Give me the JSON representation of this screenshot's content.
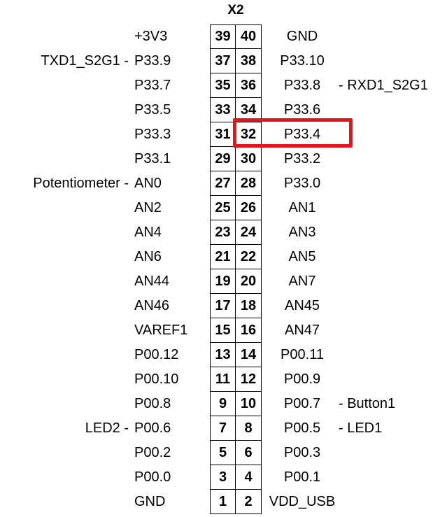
{
  "connector": "X2",
  "rows": [
    {
      "left_ext": "",
      "left_sig": "+3V3",
      "left_pin": "39",
      "right_pin": "40",
      "right_sig": "GND",
      "right_ext": ""
    },
    {
      "left_ext": "TXD1_S2G1 -",
      "left_sig": "P33.9",
      "left_pin": "37",
      "right_pin": "38",
      "right_sig": "P33.10",
      "right_ext": ""
    },
    {
      "left_ext": "",
      "left_sig": "P33.7",
      "left_pin": "35",
      "right_pin": "36",
      "right_sig": "P33.8",
      "right_ext": "- RXD1_S2G1"
    },
    {
      "left_ext": "",
      "left_sig": "P33.5",
      "left_pin": "33",
      "right_pin": "34",
      "right_sig": "P33.6",
      "right_ext": ""
    },
    {
      "left_ext": "",
      "left_sig": "P33.3",
      "left_pin": "31",
      "right_pin": "32",
      "right_sig": "P33.4",
      "right_ext": ""
    },
    {
      "left_ext": "",
      "left_sig": "P33.1",
      "left_pin": "29",
      "right_pin": "30",
      "right_sig": "P33.2",
      "right_ext": ""
    },
    {
      "left_ext": "Potentiometer -",
      "left_sig": "AN0",
      "left_pin": "27",
      "right_pin": "28",
      "right_sig": "P33.0",
      "right_ext": ""
    },
    {
      "left_ext": "",
      "left_sig": "AN2",
      "left_pin": "25",
      "right_pin": "26",
      "right_sig": "AN1",
      "right_ext": ""
    },
    {
      "left_ext": "",
      "left_sig": "AN4",
      "left_pin": "23",
      "right_pin": "24",
      "right_sig": "AN3",
      "right_ext": ""
    },
    {
      "left_ext": "",
      "left_sig": "AN6",
      "left_pin": "21",
      "right_pin": "22",
      "right_sig": "AN5",
      "right_ext": ""
    },
    {
      "left_ext": "",
      "left_sig": "AN44",
      "left_pin": "19",
      "right_pin": "20",
      "right_sig": "AN7",
      "right_ext": ""
    },
    {
      "left_ext": "",
      "left_sig": "AN46",
      "left_pin": "17",
      "right_pin": "18",
      "right_sig": "AN45",
      "right_ext": ""
    },
    {
      "left_ext": "",
      "left_sig": "VAREF1",
      "left_pin": "15",
      "right_pin": "16",
      "right_sig": "AN47",
      "right_ext": ""
    },
    {
      "left_ext": "",
      "left_sig": "P00.12",
      "left_pin": "13",
      "right_pin": "14",
      "right_sig": "P00.11",
      "right_ext": ""
    },
    {
      "left_ext": "",
      "left_sig": "P00.10",
      "left_pin": "11",
      "right_pin": "12",
      "right_sig": "P00.9",
      "right_ext": ""
    },
    {
      "left_ext": "",
      "left_sig": "P00.8",
      "left_pin": "9",
      "right_pin": "10",
      "right_sig": "P00.7",
      "right_ext": "- Button1"
    },
    {
      "left_ext": "LED2 -",
      "left_sig": "P00.6",
      "left_pin": "7",
      "right_pin": "8",
      "right_sig": "P00.5",
      "right_ext": "- LED1"
    },
    {
      "left_ext": "",
      "left_sig": "P00.2",
      "left_pin": "5",
      "right_pin": "6",
      "right_sig": "P00.3",
      "right_ext": ""
    },
    {
      "left_ext": "",
      "left_sig": "P00.0",
      "left_pin": "3",
      "right_pin": "4",
      "right_sig": "P00.1",
      "right_ext": ""
    },
    {
      "left_ext": "",
      "left_sig": "GND",
      "left_pin": "1",
      "right_pin": "2",
      "right_sig": "VDD_USB",
      "right_ext": ""
    }
  ],
  "highlight": {
    "pin": "32",
    "signal": "P33.4",
    "color": "#e8141a"
  }
}
